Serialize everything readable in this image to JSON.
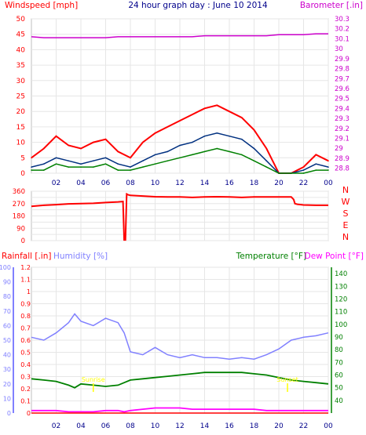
{
  "header": {
    "left_label": "Windspeed [mph]",
    "title": "24 hour graph day : June 10 2014",
    "right_label": "Barometer [.in]"
  },
  "colors": {
    "frame": "#bfbfbf",
    "grid": "#e6e6e6",
    "wind_max": "#ff0000",
    "wind_avg": "#003080",
    "wind_min": "#008000",
    "barometer": "#cc00cc",
    "direction": "#ff0000",
    "rain": "#ff0000",
    "humidity": "#8080ff",
    "temperature": "#008000",
    "dewpoint": "#ff00ff",
    "annotation": "#ffff00"
  },
  "x_tick_labels": [
    "02",
    "04",
    "06",
    "08",
    "10",
    "12",
    "14",
    "16",
    "18",
    "20",
    "22",
    "00"
  ],
  "chart_data": [
    {
      "type": "line",
      "name": "wind_barometer",
      "ylabel": "Windspeed [mph]",
      "ylabel_right": "Barometer [.in]",
      "ylim": [
        0,
        50
      ],
      "y_ticks": [
        0,
        5,
        10,
        15,
        20,
        25,
        30,
        35,
        40,
        45,
        50
      ],
      "y2lim": [
        28.75,
        30.3
      ],
      "y2_ticks": [
        "28.8",
        "28.9",
        "29",
        "29.1",
        "29.2",
        "29.3",
        "29.4",
        "29.5",
        "29.6",
        "29.7",
        "29.8",
        "29.9",
        "30",
        "30.1",
        "30.2",
        "30.3"
      ],
      "x": [
        0,
        1,
        2,
        3,
        4,
        5,
        6,
        7,
        8,
        9,
        10,
        11,
        12,
        13,
        14,
        15,
        16,
        17,
        18,
        19,
        20,
        21,
        22,
        23,
        24
      ],
      "series": [
        {
          "key": "max",
          "values": [
            5,
            8,
            12,
            9,
            8,
            10,
            11,
            7,
            5,
            10,
            13,
            15,
            17,
            19,
            21,
            22,
            20,
            18,
            14,
            8,
            0,
            0,
            2,
            6,
            4
          ]
        },
        {
          "key": "avg",
          "values": [
            2,
            3,
            5,
            4,
            3,
            4,
            5,
            3,
            2,
            4,
            6,
            7,
            9,
            10,
            12,
            13,
            12,
            11,
            8,
            4,
            0,
            0,
            1,
            3,
            2
          ]
        },
        {
          "key": "min",
          "values": [
            1,
            1,
            3,
            2,
            2,
            2,
            3,
            1,
            1,
            2,
            3,
            4,
            5,
            6,
            7,
            8,
            7,
            6,
            4,
            2,
            0,
            0,
            0,
            1,
            1
          ]
        },
        {
          "key": "barometer",
          "values": [
            30.12,
            30.11,
            30.11,
            30.11,
            30.11,
            30.11,
            30.11,
            30.12,
            30.12,
            30.12,
            30.12,
            30.12,
            30.12,
            30.12,
            30.13,
            30.13,
            30.13,
            30.13,
            30.13,
            30.13,
            30.14,
            30.14,
            30.14,
            30.15,
            30.15
          ]
        }
      ]
    },
    {
      "type": "line",
      "name": "wind_direction",
      "ylim": [
        0,
        360
      ],
      "y_ticks": [
        0,
        45,
        90,
        135,
        180,
        225,
        270,
        315,
        360
      ],
      "y_tick_labels": [
        "0",
        "",
        "90",
        "",
        "180",
        "",
        "270",
        "",
        "360"
      ],
      "compass_labels": [
        "N",
        "W",
        "S",
        "E",
        "N"
      ],
      "x": [
        0,
        1,
        2,
        3,
        4,
        5,
        6,
        7,
        7.4,
        7.5,
        7.6,
        7.7,
        7.8,
        8,
        9,
        10,
        11,
        12,
        13,
        14,
        15,
        16,
        17,
        18,
        19,
        20,
        21,
        21.2,
        21.3,
        21.5,
        22,
        23,
        24
      ],
      "values": [
        250,
        258,
        262,
        268,
        270,
        272,
        278,
        282,
        285,
        5,
        5,
        340,
        335,
        330,
        325,
        320,
        318,
        318,
        315,
        318,
        320,
        318,
        315,
        318,
        318,
        318,
        318,
        300,
        270,
        265,
        260,
        258,
        258
      ]
    },
    {
      "type": "line",
      "name": "rain_humidity_temperature",
      "ylabel_rain": "Rainfall [.in]",
      "ylabel_humidity": "Humidity [%]",
      "ylabel_temp": "Temperature [°F]",
      "ylabel_dewpoint": "Dew Point [°F]",
      "rain_ylim": [
        0,
        1.2
      ],
      "rain_ticks": [
        "0",
        "0.1",
        "0.2",
        "0.3",
        "0.4",
        "0.5",
        "0.6",
        "0.7",
        "0.8",
        "0.9",
        "1",
        "1.1",
        "1.2"
      ],
      "humidity_ylim": [
        0,
        100
      ],
      "humidity_ticks": [
        "0",
        "10",
        "20",
        "30",
        "40",
        "50",
        "60",
        "70",
        "80",
        "90",
        "100"
      ],
      "temp_ylim": [
        30,
        145
      ],
      "temp_ticks": [
        "40",
        "50",
        "60",
        "70",
        "80",
        "90",
        "100",
        "110",
        "120",
        "130",
        "140"
      ],
      "x": [
        0,
        1,
        2,
        3,
        3.5,
        4,
        5,
        6,
        7,
        7.5,
        8,
        9,
        10,
        11,
        12,
        13,
        14,
        15,
        16,
        17,
        18,
        19,
        20,
        21,
        22,
        23,
        24
      ],
      "series": [
        {
          "key": "humidity",
          "values": [
            52,
            50,
            55,
            62,
            68,
            63,
            60,
            65,
            62,
            55,
            42,
            40,
            45,
            40,
            38,
            40,
            38,
            38,
            37,
            38,
            37,
            40,
            44,
            50,
            52,
            53,
            55
          ]
        },
        {
          "key": "temperature",
          "values": [
            57,
            56,
            55,
            52,
            50,
            53,
            52,
            51,
            52,
            54,
            56,
            57,
            58,
            59,
            60,
            61,
            62,
            62,
            62,
            62,
            61,
            60,
            58,
            56,
            55,
            54,
            53
          ]
        },
        {
          "key": "dewpoint",
          "values": [
            32,
            32,
            32,
            31,
            31,
            31,
            31,
            32,
            32,
            31,
            32,
            33,
            34,
            34,
            34,
            33,
            33,
            33,
            33,
            33,
            33,
            32,
            32,
            32,
            32,
            32,
            32
          ]
        },
        {
          "key": "rain",
          "values": [
            0,
            0,
            0,
            0,
            0,
            0,
            0,
            0,
            0,
            0,
            0,
            0,
            0,
            0,
            0,
            0,
            0,
            0,
            0,
            0,
            0,
            0,
            0,
            0,
            0,
            0,
            0
          ]
        }
      ],
      "annotations": [
        {
          "label": "Sunrise",
          "x": 5.0
        },
        {
          "label": "Sunset",
          "x": 20.7
        }
      ]
    }
  ]
}
